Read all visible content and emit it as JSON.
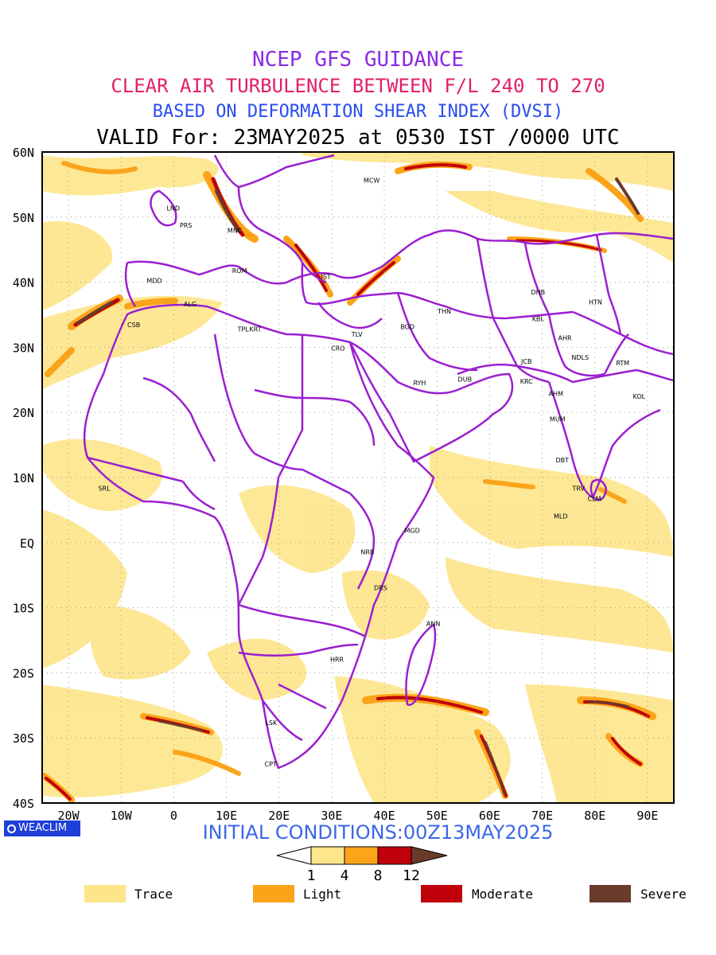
{
  "titles": {
    "line1": "NCEP GFS GUIDANCE",
    "line2": "CLEAR AIR TURBULENCE BETWEEN F/L 240 TO 270",
    "line3": "BASED ON DEFORMATION SHEAR INDEX (DVSI)",
    "line4": "VALID For: 23MAY2025 at 0530 IST /0000 UTC"
  },
  "map": {
    "lon_range": [
      -25,
      95
    ],
    "lat_range": [
      -40,
      60
    ],
    "lat_ticks": [
      "60N",
      "50N",
      "40N",
      "30N",
      "20N",
      "10N",
      "EQ",
      "10S",
      "20S",
      "30S",
      "40S"
    ],
    "lon_ticks": [
      "20W",
      "10W",
      "0",
      "10E",
      "20E",
      "30E",
      "40E",
      "50E",
      "60E",
      "70E",
      "80E",
      "90E"
    ],
    "boundary_color": "#9b1fd0",
    "grid": "dotted",
    "stations": [
      {
        "code": "MCW",
        "lon": 37.6,
        "lat": 55.8
      },
      {
        "code": "LND",
        "lon": -0.1,
        "lat": 51.5
      },
      {
        "code": "PRS",
        "lon": 2.3,
        "lat": 48.9
      },
      {
        "code": "MNC",
        "lon": 11.6,
        "lat": 48.1
      },
      {
        "code": "ROM",
        "lon": 12.5,
        "lat": 41.9
      },
      {
        "code": "MDD",
        "lon": -3.7,
        "lat": 40.4
      },
      {
        "code": "IST",
        "lon": 28.9,
        "lat": 41.0
      },
      {
        "code": "ALG",
        "lon": 3.1,
        "lat": 36.8
      },
      {
        "code": "CSB",
        "lon": -7.6,
        "lat": 33.6
      },
      {
        "code": "TPL",
        "lon": 13.2,
        "lat": 32.9
      },
      {
        "code": "KRT",
        "lon": 15.5,
        "lat": 32.9
      },
      {
        "code": "TLV",
        "lon": 34.8,
        "lat": 32.1
      },
      {
        "code": "CRO",
        "lon": 31.2,
        "lat": 30.0
      },
      {
        "code": "BGD",
        "lon": 44.4,
        "lat": 33.3
      },
      {
        "code": "THN",
        "lon": 51.4,
        "lat": 35.7
      },
      {
        "code": "RYH",
        "lon": 46.7,
        "lat": 24.7
      },
      {
        "code": "DUB",
        "lon": 55.3,
        "lat": 25.2
      },
      {
        "code": "DHB",
        "lon": 69.2,
        "lat": 38.6
      },
      {
        "code": "HTN",
        "lon": 80.1,
        "lat": 37.1
      },
      {
        "code": "KBL",
        "lon": 69.2,
        "lat": 34.5
      },
      {
        "code": "AHR",
        "lon": 74.3,
        "lat": 31.6
      },
      {
        "code": "JCB",
        "lon": 67.0,
        "lat": 28.0
      },
      {
        "code": "NDLS",
        "lon": 77.2,
        "lat": 28.6
      },
      {
        "code": "RTM",
        "lon": 85.3,
        "lat": 27.7
      },
      {
        "code": "KRC",
        "lon": 67.0,
        "lat": 24.9
      },
      {
        "code": "AHM",
        "lon": 72.6,
        "lat": 23.0
      },
      {
        "code": "KOL",
        "lon": 88.4,
        "lat": 22.6
      },
      {
        "code": "MUM",
        "lon": 72.9,
        "lat": 19.1
      },
      {
        "code": "DBT",
        "lon": 73.8,
        "lat": 12.8
      },
      {
        "code": "TRV",
        "lon": 76.9,
        "lat": 8.5
      },
      {
        "code": "CLM",
        "lon": 79.9,
        "lat": 6.9
      },
      {
        "code": "SRL",
        "lon": -13.2,
        "lat": 8.5
      },
      {
        "code": "MGD",
        "lon": 45.3,
        "lat": 2.0
      },
      {
        "code": "MLD",
        "lon": 73.5,
        "lat": 4.2
      },
      {
        "code": "NRB",
        "lon": 36.8,
        "lat": -1.3
      },
      {
        "code": "DRS",
        "lon": 39.3,
        "lat": -6.8
      },
      {
        "code": "ANN",
        "lon": 49.3,
        "lat": -12.3
      },
      {
        "code": "HRR",
        "lon": 31.0,
        "lat": -17.8
      },
      {
        "code": "LSK",
        "lon": 18.5,
        "lat": -27.5
      },
      {
        "code": "CPT",
        "lon": 18.4,
        "lat": -33.9
      }
    ]
  },
  "colorbar": {
    "ticks": [
      "1",
      "4",
      "8",
      "12"
    ],
    "colors": [
      "#ffffff",
      "#fde58a",
      "#fba41a",
      "#c0000b",
      "#6a3a2a"
    ]
  },
  "legend": [
    {
      "label": "Trace",
      "color": "#fde58a"
    },
    {
      "label": "Light",
      "color": "#fba41a"
    },
    {
      "label": "Moderate",
      "color": "#c0000b"
    },
    {
      "label": "Severe",
      "color": "#6a3a2a"
    }
  ],
  "initial_conditions": "INITIAL CONDITIONS:00Z13MAY2025",
  "logo_text": "WEACLIM"
}
